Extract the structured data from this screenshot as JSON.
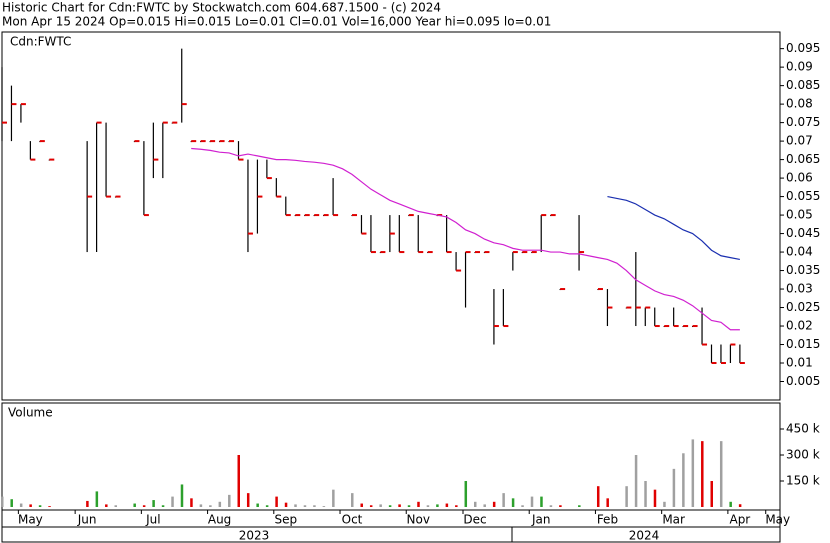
{
  "header": {
    "line1": "Historic Chart for Cdn:FWTC by Stockwatch.com 604.687.1500 - (c) 2024",
    "line2": "Mon Apr 15 2024  Op=0.015  Hi=0.015  Lo=0.01  Cl=0.01  Vol=16,000  Year hi=0.095  lo=0.01"
  },
  "chart_data": [
    {
      "type": "ohlc",
      "title": "Cdn:FWTC",
      "high": [
        0.09,
        0.085,
        0.08,
        0.07,
        0.07,
        0.065,
        null,
        null,
        null,
        0.07,
        0.075,
        0.075,
        0.055,
        null,
        0.07,
        0.07,
        0.075,
        0.075,
        0.075,
        0.095,
        0.07,
        0.07,
        0.07,
        0.07,
        0.07,
        0.07,
        0.065,
        0.065,
        0.065,
        0.06,
        0.055,
        0.05,
        0.05,
        0.05,
        0.05,
        0.06,
        null,
        0.05,
        0.05,
        0.05,
        0.04,
        0.05,
        0.05,
        0.05,
        0.05,
        0.04,
        0.05,
        0.05,
        0.04,
        0.04,
        0.04,
        0.04,
        0.03,
        0.03,
        0.04,
        0.04,
        0.04,
        0.05,
        0.05,
        0.03,
        null,
        0.05,
        null,
        0.03,
        0.03,
        null,
        0.025,
        0.04,
        0.025,
        0.025,
        0.02,
        0.025,
        0.02,
        0.02,
        0.025,
        0.015,
        0.015,
        0.015,
        0.015,
        null,
        null,
        null,
        null
      ],
      "low": [
        0.07,
        0.07,
        0.075,
        0.065,
        0.07,
        0.065,
        null,
        null,
        null,
        0.04,
        0.04,
        0.055,
        0.055,
        null,
        0.07,
        0.05,
        0.06,
        0.06,
        0.075,
        0.075,
        0.07,
        0.07,
        0.07,
        0.07,
        0.07,
        0.065,
        0.04,
        0.045,
        0.06,
        0.055,
        0.05,
        0.05,
        0.05,
        0.05,
        0.05,
        0.05,
        null,
        0.05,
        0.045,
        0.04,
        0.04,
        0.04,
        0.04,
        0.05,
        0.04,
        0.04,
        0.05,
        0.04,
        0.035,
        0.025,
        0.04,
        0.04,
        0.015,
        0.02,
        0.035,
        0.04,
        0.04,
        0.04,
        0.05,
        0.03,
        null,
        0.035,
        null,
        0.03,
        0.02,
        null,
        0.025,
        0.02,
        0.02,
        0.02,
        0.02,
        0.02,
        0.02,
        0.02,
        0.015,
        0.01,
        0.01,
        0.01,
        0.01,
        null,
        null,
        null,
        null
      ],
      "close": [
        0.075,
        0.08,
        0.08,
        0.065,
        0.07,
        0.065,
        null,
        null,
        null,
        0.055,
        0.075,
        0.055,
        0.055,
        null,
        0.07,
        0.05,
        0.065,
        0.075,
        0.075,
        0.08,
        0.07,
        0.07,
        0.07,
        0.07,
        0.07,
        0.065,
        0.045,
        0.055,
        0.06,
        0.055,
        0.05,
        0.05,
        0.05,
        0.05,
        0.05,
        0.05,
        null,
        0.05,
        0.045,
        0.04,
        0.04,
        0.045,
        0.04,
        0.05,
        0.04,
        0.04,
        0.05,
        0.04,
        0.035,
        0.04,
        0.04,
        0.04,
        0.02,
        0.02,
        0.04,
        0.04,
        0.04,
        0.05,
        0.05,
        0.03,
        null,
        0.04,
        null,
        0.03,
        0.025,
        null,
        0.025,
        0.025,
        0.025,
        0.02,
        0.02,
        0.02,
        0.02,
        0.02,
        0.015,
        0.01,
        0.01,
        0.015,
        0.01,
        null,
        null,
        null,
        null
      ],
      "tick_color": "#e00000",
      "bar_color": "#000000",
      "overlays": [
        {
          "color": "#d020d0",
          "values": [
            null,
            null,
            null,
            null,
            null,
            null,
            null,
            null,
            null,
            null,
            null,
            null,
            null,
            null,
            null,
            null,
            null,
            null,
            null,
            null,
            0.068,
            0.0678,
            0.0675,
            0.067,
            0.0668,
            0.066,
            0.0665,
            0.066,
            0.0655,
            0.065,
            0.065,
            0.0648,
            0.0645,
            0.0643,
            0.064,
            0.0635,
            0.0625,
            0.061,
            0.059,
            0.057,
            0.0555,
            0.054,
            0.053,
            0.052,
            0.051,
            0.0505,
            0.05,
            0.0495,
            0.048,
            0.046,
            0.045,
            0.0435,
            0.0425,
            0.042,
            0.041,
            0.0405,
            0.0405,
            0.0405,
            0.04,
            0.04,
            0.0395,
            0.0395,
            0.039,
            0.0385,
            0.038,
            0.037,
            0.035,
            0.0325,
            0.031,
            0.0295,
            0.0285,
            0.028,
            0.027,
            0.0255,
            0.0235,
            0.0215,
            0.021,
            0.019,
            0.019,
            null,
            null,
            null,
            null
          ]
        },
        {
          "color": "#1a2fb0",
          "values": [
            null,
            null,
            null,
            null,
            null,
            null,
            null,
            null,
            null,
            null,
            null,
            null,
            null,
            null,
            null,
            null,
            null,
            null,
            null,
            null,
            null,
            null,
            null,
            null,
            null,
            null,
            null,
            null,
            null,
            null,
            null,
            null,
            null,
            null,
            null,
            null,
            null,
            null,
            null,
            null,
            null,
            null,
            null,
            null,
            null,
            null,
            null,
            null,
            null,
            null,
            null,
            null,
            null,
            null,
            null,
            null,
            null,
            null,
            null,
            null,
            null,
            null,
            null,
            null,
            0.055,
            0.0545,
            0.054,
            0.053,
            0.0515,
            0.05,
            0.049,
            0.0475,
            0.046,
            0.045,
            0.043,
            0.0405,
            0.039,
            0.0385,
            0.038,
            null,
            null,
            null,
            null
          ]
        }
      ],
      "ylim": [
        0,
        0.0995
      ],
      "yticks": [
        0.005,
        0.01,
        0.015,
        0.02,
        0.025,
        0.03,
        0.035,
        0.04,
        0.045,
        0.05,
        0.055,
        0.06,
        0.065,
        0.07,
        0.075,
        0.08,
        0.085,
        0.09,
        0.095
      ]
    },
    {
      "type": "bar",
      "title": "Volume",
      "categories": [
        null,
        null,
        null,
        "May",
        null,
        null,
        null,
        null,
        null,
        "Jun",
        null,
        null,
        null,
        null,
        null,
        null,
        "Jul",
        null,
        null,
        null,
        null,
        null,
        null,
        "Aug",
        null,
        null,
        null,
        null,
        null,
        null,
        "Sep",
        null,
        null,
        null,
        null,
        null,
        null,
        "Oct",
        null,
        null,
        null,
        null,
        null,
        null,
        "Nov",
        null,
        null,
        null,
        null,
        null,
        "Dec",
        null,
        null,
        null,
        null,
        null,
        null,
        "Jan",
        null,
        null,
        null,
        null,
        null,
        null,
        "Feb",
        null,
        null,
        null,
        null,
        null,
        null,
        "Mar",
        null,
        null,
        null,
        null,
        null,
        null,
        "Apr",
        null,
        null,
        null,
        "May"
      ],
      "values": [
        60000,
        45000,
        20000,
        15000,
        10000,
        5000,
        null,
        null,
        null,
        35000,
        90000,
        15000,
        10000,
        null,
        20000,
        10000,
        40000,
        10000,
        60000,
        130000,
        50000,
        15000,
        10000,
        30000,
        70000,
        300000,
        80000,
        20000,
        10000,
        60000,
        25000,
        15000,
        10000,
        10000,
        5000,
        100000,
        null,
        80000,
        20000,
        10000,
        15000,
        10000,
        15000,
        10000,
        30000,
        10000,
        15000,
        20000,
        10000,
        150000,
        30000,
        15000,
        30000,
        80000,
        50000,
        10000,
        60000,
        60000,
        10000,
        10000,
        null,
        10000,
        null,
        120000,
        50000,
        null,
        120000,
        300000,
        150000,
        100000,
        30000,
        220000,
        310000,
        390000,
        380000,
        150000,
        380000,
        30000,
        16000,
        null,
        null,
        null,
        null
      ],
      "up_color": "#2ca02c",
      "down_color": "#e00000",
      "flat_color": "#a0a0a0",
      "years": [
        "2023",
        "2024"
      ],
      "ylim": [
        0,
        600000
      ],
      "yticks": [
        {
          "value": 150000,
          "label": "150 k"
        },
        {
          "value": 300000,
          "label": "300 k"
        },
        {
          "value": 450000,
          "label": "450 k"
        }
      ]
    }
  ]
}
